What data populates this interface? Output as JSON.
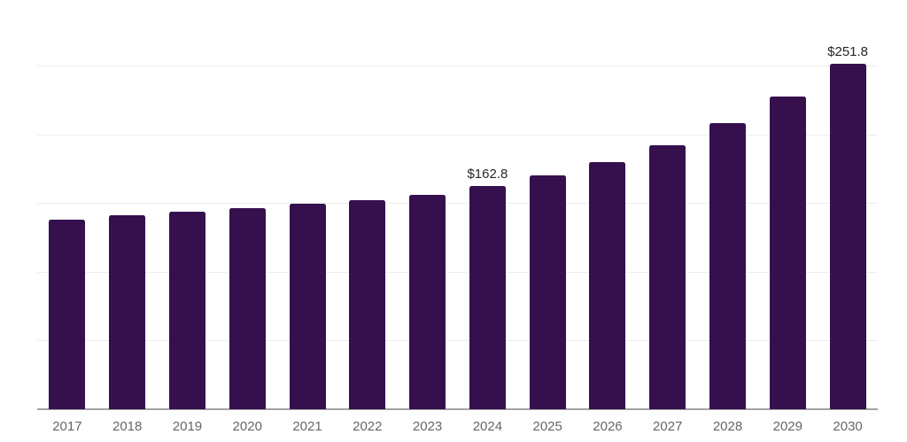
{
  "chart_data": {
    "type": "bar",
    "title": "",
    "categories": [
      "2017",
      "2018",
      "2019",
      "2020",
      "2021",
      "2022",
      "2023",
      "2024",
      "2025",
      "2026",
      "2027",
      "2028",
      "2029",
      "2030"
    ],
    "values": [
      137.9,
      141.2,
      143.8,
      146.4,
      149.5,
      152.3,
      156.0,
      162.8,
      170.2,
      180.3,
      192.4,
      208.7,
      227.5,
      251.8
    ],
    "data_labels": {
      "2024": "$162.8",
      "2030": "$251.8"
    },
    "xlabel": "",
    "ylabel": "",
    "ylim": [
      0,
      250
    ],
    "gridline_values": [
      50,
      100,
      150,
      200,
      250
    ],
    "grid": true,
    "legend_position": "none",
    "colors": {
      "bar": "#36104D",
      "gridline": "#ededed",
      "axis_line": "#a3a3a3",
      "tick_label": "#666666",
      "data_label": "#262626"
    }
  }
}
